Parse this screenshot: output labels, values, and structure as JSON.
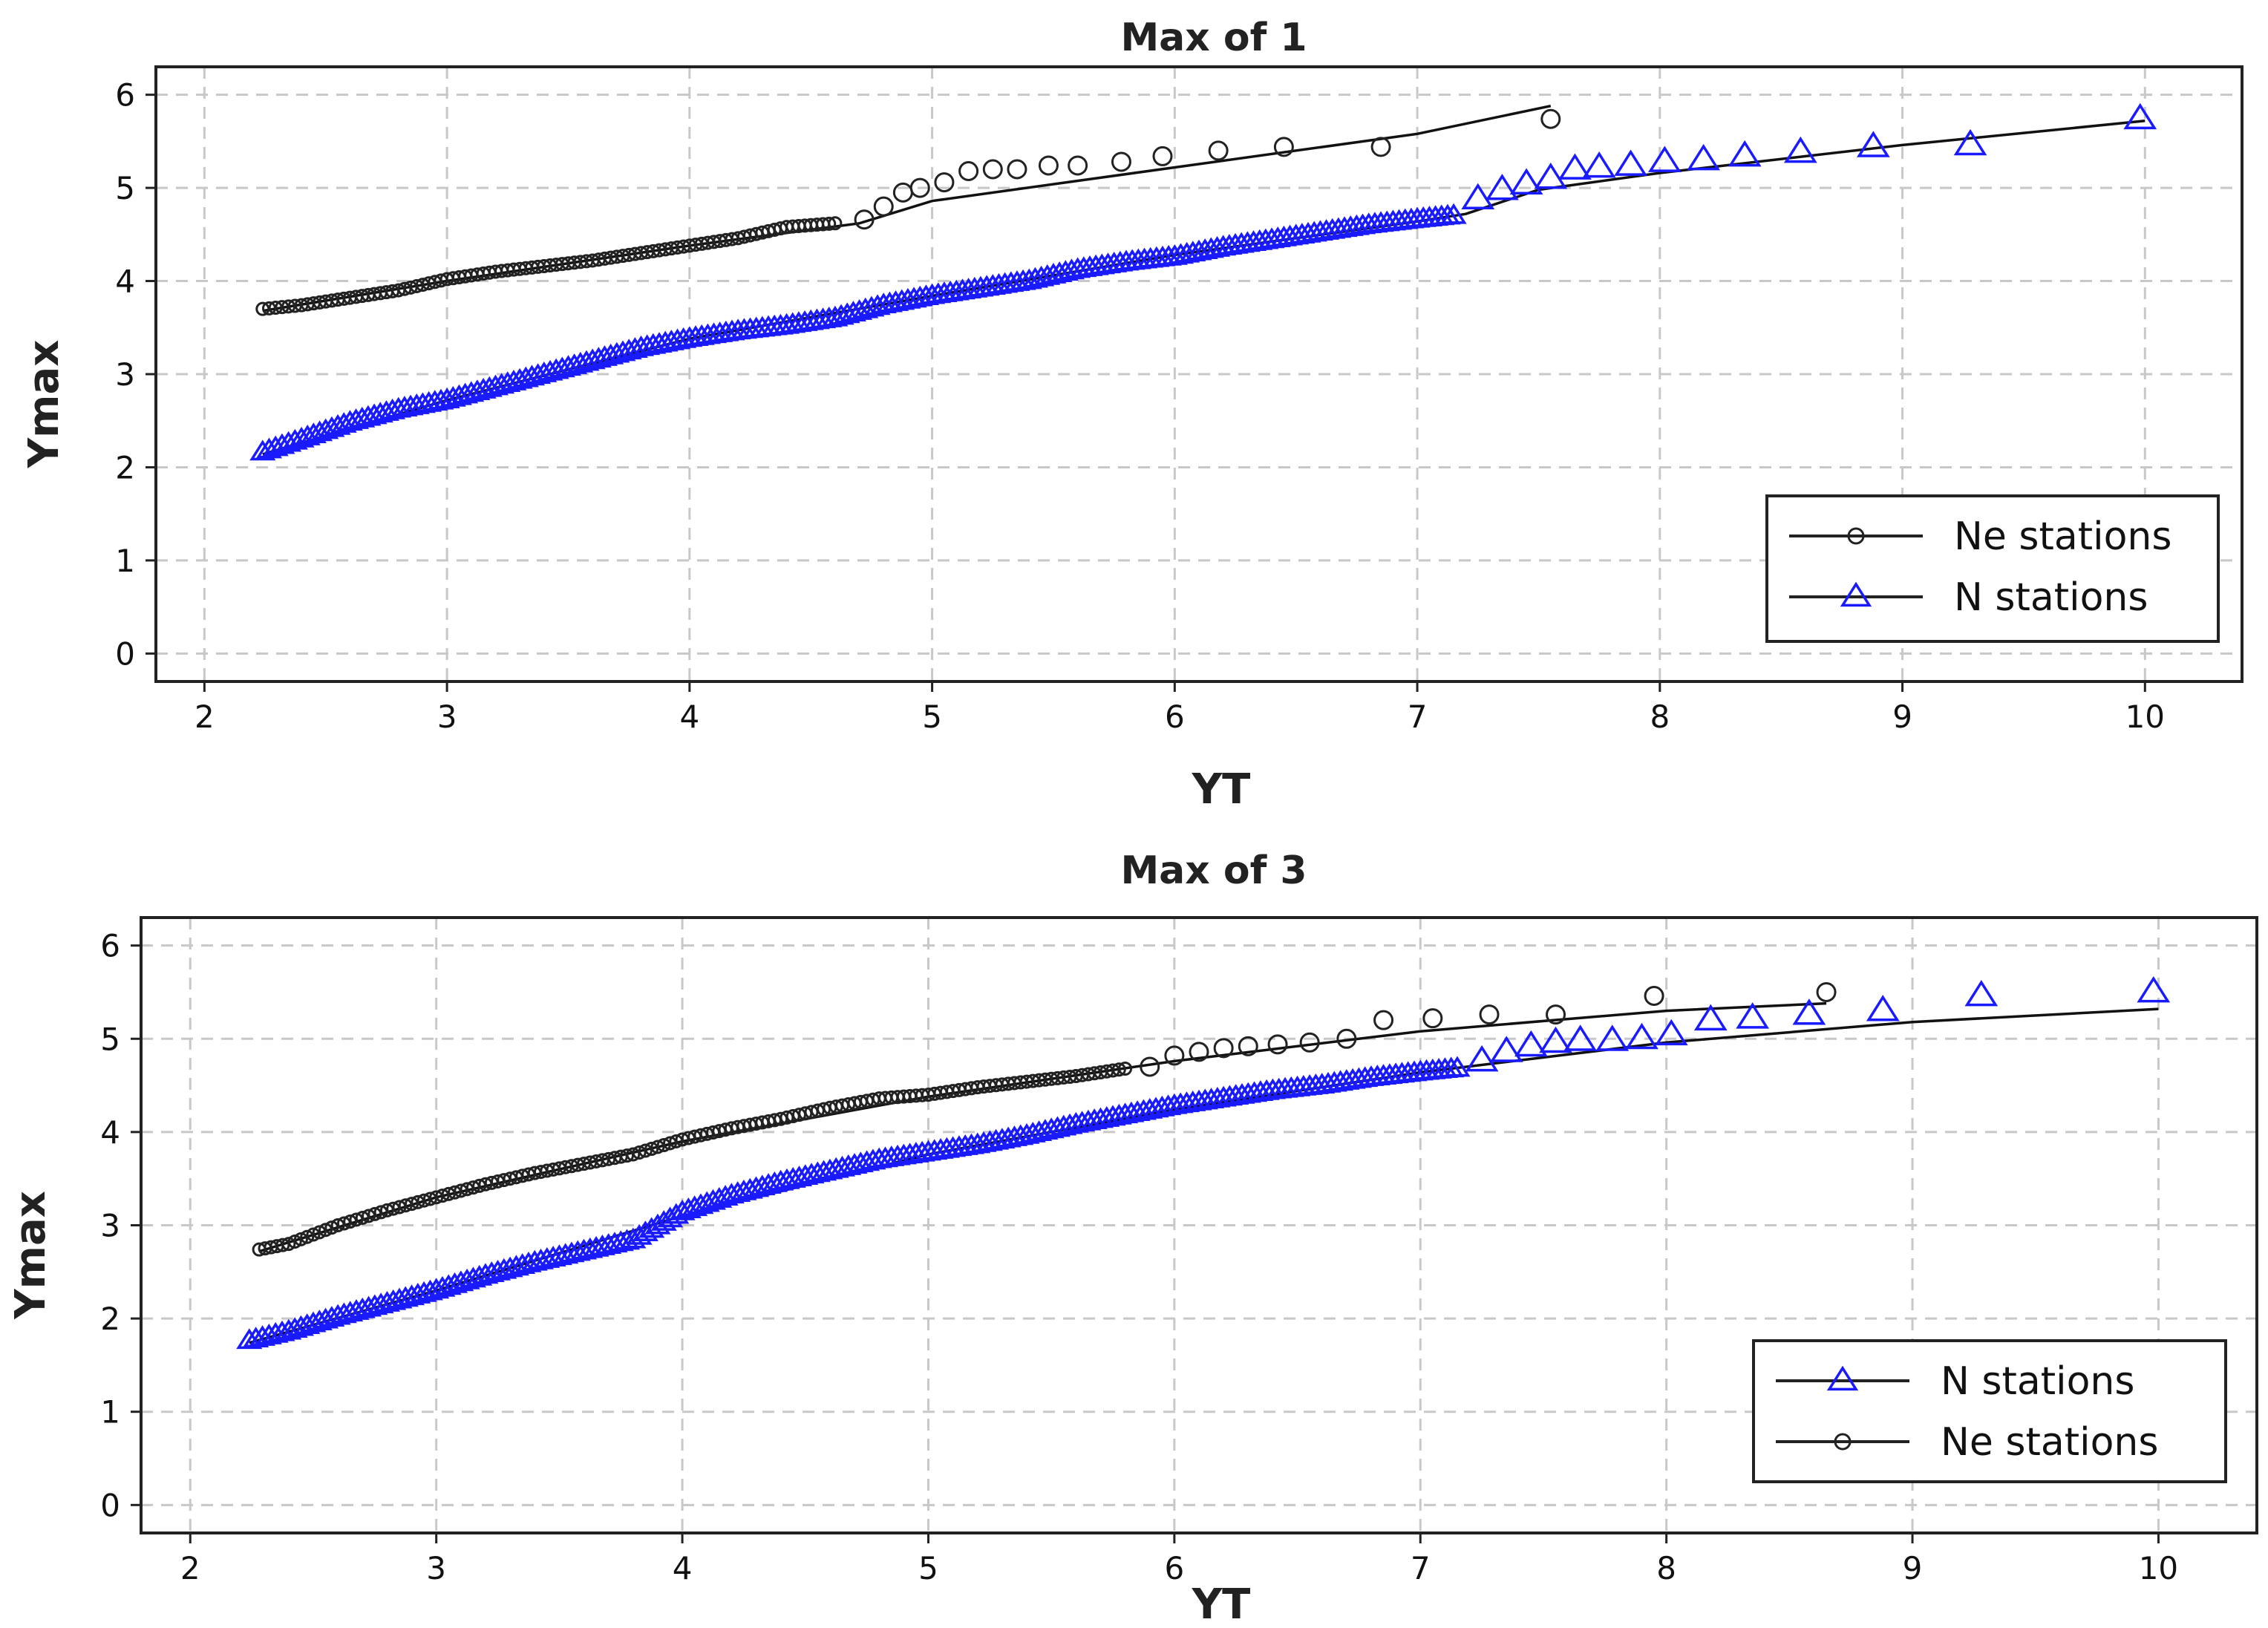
{
  "chart_data": [
    {
      "type": "scatter",
      "title": "Max of 1",
      "xlabel": "YT",
      "ylabel": "Ymax",
      "xlim": [
        1.8,
        10.4
      ],
      "ylim": [
        -0.3,
        6.3
      ],
      "x_ticks": [
        2,
        3,
        4,
        5,
        6,
        7,
        8,
        9,
        10
      ],
      "y_ticks": [
        0,
        1,
        2,
        3,
        4,
        5,
        6
      ],
      "grid": true,
      "legend_position": "bottom-right",
      "legend_order": [
        0,
        1
      ],
      "series": [
        {
          "name": "Ne stations",
          "marker": "circle",
          "color": "#222222",
          "points_dense": [
            [
              2.24,
              3.7
            ],
            [
              2.4,
              3.74
            ],
            [
              2.6,
              3.82
            ],
            [
              2.8,
              3.9
            ],
            [
              3.0,
              4.02
            ],
            [
              3.2,
              4.1
            ],
            [
              3.4,
              4.16
            ],
            [
              3.6,
              4.22
            ],
            [
              3.8,
              4.3
            ],
            [
              4.0,
              4.38
            ],
            [
              4.2,
              4.46
            ],
            [
              4.4,
              4.58
            ],
            [
              4.6,
              4.62
            ]
          ],
          "points": [
            [
              4.72,
              4.66
            ],
            [
              4.8,
              4.8
            ],
            [
              4.88,
              4.95
            ],
            [
              4.95,
              5.0
            ],
            [
              5.05,
              5.06
            ],
            [
              5.15,
              5.18
            ],
            [
              5.25,
              5.2
            ],
            [
              5.35,
              5.2
            ],
            [
              5.48,
              5.24
            ],
            [
              5.6,
              5.24
            ],
            [
              5.78,
              5.28
            ],
            [
              5.95,
              5.34
            ],
            [
              6.18,
              5.4
            ],
            [
              6.45,
              5.44
            ],
            [
              6.85,
              5.44
            ],
            [
              7.55,
              5.74
            ]
          ],
          "fit_line": [
            [
              2.24,
              3.68
            ],
            [
              3.0,
              4.0
            ],
            [
              4.0,
              4.38
            ],
            [
              4.7,
              4.62
            ],
            [
              5.0,
              4.86
            ],
            [
              6.0,
              5.22
            ],
            [
              7.0,
              5.58
            ],
            [
              7.55,
              5.88
            ]
          ]
        },
        {
          "name": "N stations",
          "marker": "triangle",
          "color": "#1a1aff",
          "points_dense": [
            [
              2.24,
              2.16
            ],
            [
              2.4,
              2.3
            ],
            [
              2.6,
              2.48
            ],
            [
              2.8,
              2.62
            ],
            [
              3.0,
              2.72
            ],
            [
              3.2,
              2.86
            ],
            [
              3.4,
              3.0
            ],
            [
              3.6,
              3.14
            ],
            [
              3.8,
              3.28
            ],
            [
              4.0,
              3.38
            ],
            [
              4.2,
              3.46
            ],
            [
              4.4,
              3.52
            ],
            [
              4.6,
              3.6
            ],
            [
              4.8,
              3.74
            ],
            [
              5.0,
              3.84
            ],
            [
              5.2,
              3.92
            ],
            [
              5.4,
              4.0
            ],
            [
              5.6,
              4.12
            ],
            [
              5.8,
              4.2
            ],
            [
              6.0,
              4.26
            ],
            [
              6.2,
              4.36
            ],
            [
              6.4,
              4.44
            ],
            [
              6.6,
              4.52
            ],
            [
              6.8,
              4.6
            ],
            [
              7.0,
              4.66
            ],
            [
              7.15,
              4.7
            ]
          ],
          "points": [
            [
              7.25,
              4.88
            ],
            [
              7.35,
              4.98
            ],
            [
              7.45,
              5.04
            ],
            [
              7.55,
              5.1
            ],
            [
              7.65,
              5.2
            ],
            [
              7.75,
              5.22
            ],
            [
              7.88,
              5.24
            ],
            [
              8.02,
              5.28
            ],
            [
              8.18,
              5.3
            ],
            [
              8.35,
              5.34
            ],
            [
              8.58,
              5.38
            ],
            [
              8.88,
              5.44
            ],
            [
              9.28,
              5.46
            ],
            [
              9.98,
              5.74
            ]
          ],
          "fit_line": [
            [
              2.24,
              2.14
            ],
            [
              3.0,
              2.72
            ],
            [
              4.0,
              3.38
            ],
            [
              5.0,
              3.84
            ],
            [
              6.0,
              4.28
            ],
            [
              7.0,
              4.64
            ],
            [
              7.2,
              4.72
            ],
            [
              7.5,
              4.98
            ],
            [
              8.0,
              5.16
            ],
            [
              9.0,
              5.46
            ],
            [
              10.0,
              5.72
            ]
          ]
        }
      ]
    },
    {
      "type": "scatter",
      "title": "Max of 3",
      "xlabel": "YT",
      "ylabel": "Ymax",
      "xlim": [
        1.8,
        10.4
      ],
      "ylim": [
        -0.3,
        6.3
      ],
      "x_ticks": [
        2,
        3,
        4,
        5,
        6,
        7,
        8,
        9,
        10
      ],
      "y_ticks": [
        0,
        1,
        2,
        3,
        4,
        5,
        6
      ],
      "grid": true,
      "legend_position": "bottom-right",
      "legend_order": [
        1,
        0
      ],
      "series": [
        {
          "name": "Ne stations",
          "marker": "circle",
          "color": "#222222",
          "points_dense": [
            [
              2.28,
              2.74
            ],
            [
              2.4,
              2.8
            ],
            [
              2.6,
              3.0
            ],
            [
              2.8,
              3.16
            ],
            [
              3.0,
              3.3
            ],
            [
              3.2,
              3.44
            ],
            [
              3.4,
              3.56
            ],
            [
              3.6,
              3.66
            ],
            [
              3.8,
              3.76
            ],
            [
              4.0,
              3.92
            ],
            [
              4.2,
              4.04
            ],
            [
              4.4,
              4.14
            ],
            [
              4.6,
              4.26
            ],
            [
              4.8,
              4.36
            ],
            [
              5.0,
              4.4
            ],
            [
              5.2,
              4.48
            ],
            [
              5.4,
              4.54
            ],
            [
              5.6,
              4.6
            ],
            [
              5.8,
              4.68
            ]
          ],
          "points": [
            [
              5.9,
              4.7
            ],
            [
              6.0,
              4.82
            ],
            [
              6.1,
              4.86
            ],
            [
              6.2,
              4.9
            ],
            [
              6.3,
              4.92
            ],
            [
              6.42,
              4.94
            ],
            [
              6.55,
              4.96
            ],
            [
              6.7,
              5.0
            ],
            [
              6.85,
              5.2
            ],
            [
              7.05,
              5.22
            ],
            [
              7.28,
              5.26
            ],
            [
              7.55,
              5.26
            ],
            [
              7.95,
              5.46
            ],
            [
              8.65,
              5.5
            ]
          ],
          "fit_line": [
            [
              2.28,
              2.72
            ],
            [
              3.0,
              3.3
            ],
            [
              4.0,
              3.9
            ],
            [
              5.0,
              4.38
            ],
            [
              6.0,
              4.76
            ],
            [
              7.0,
              5.08
            ],
            [
              8.0,
              5.3
            ],
            [
              8.65,
              5.38
            ]
          ]
        },
        {
          "name": "N stations",
          "marker": "triangle",
          "color": "#1a1aff",
          "points_dense": [
            [
              2.24,
              1.76
            ],
            [
              2.4,
              1.86
            ],
            [
              2.6,
              2.02
            ],
            [
              2.8,
              2.16
            ],
            [
              3.0,
              2.3
            ],
            [
              3.2,
              2.46
            ],
            [
              3.4,
              2.6
            ],
            [
              3.6,
              2.72
            ],
            [
              3.8,
              2.84
            ],
            [
              4.0,
              3.14
            ],
            [
              4.2,
              3.32
            ],
            [
              4.4,
              3.46
            ],
            [
              4.6,
              3.58
            ],
            [
              4.8,
              3.7
            ],
            [
              5.0,
              3.78
            ],
            [
              5.2,
              3.86
            ],
            [
              5.4,
              3.96
            ],
            [
              5.6,
              4.08
            ],
            [
              5.8,
              4.18
            ],
            [
              6.0,
              4.28
            ],
            [
              6.2,
              4.36
            ],
            [
              6.4,
              4.44
            ],
            [
              6.6,
              4.5
            ],
            [
              6.8,
              4.58
            ],
            [
              7.0,
              4.64
            ],
            [
              7.15,
              4.68
            ]
          ],
          "points": [
            [
              7.25,
              4.76
            ],
            [
              7.35,
              4.86
            ],
            [
              7.45,
              4.92
            ],
            [
              7.55,
              4.96
            ],
            [
              7.65,
              4.98
            ],
            [
              7.78,
              4.98
            ],
            [
              7.9,
              5.0
            ],
            [
              8.02,
              5.04
            ],
            [
              8.18,
              5.2
            ],
            [
              8.35,
              5.22
            ],
            [
              8.58,
              5.26
            ],
            [
              8.88,
              5.3
            ],
            [
              9.28,
              5.46
            ],
            [
              9.98,
              5.5
            ]
          ],
          "fit_line": [
            [
              2.24,
              1.74
            ],
            [
              3.0,
              2.3
            ],
            [
              4.0,
              3.1
            ],
            [
              5.0,
              3.76
            ],
            [
              6.0,
              4.24
            ],
            [
              7.0,
              4.64
            ],
            [
              8.0,
              4.96
            ],
            [
              9.0,
              5.18
            ],
            [
              10.0,
              5.32
            ]
          ]
        }
      ]
    }
  ]
}
